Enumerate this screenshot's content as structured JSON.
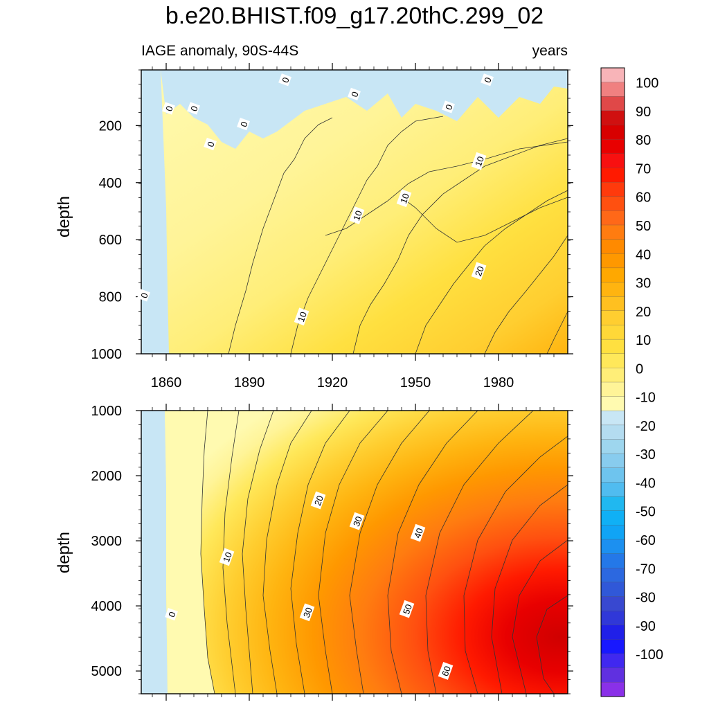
{
  "title": "b.e20.BHIST.f09_g17.20thC.299_02",
  "subtitle_left": "IAGE anomaly, 90S-44S",
  "subtitle_right": "years",
  "chart_data": {
    "type": "heatmap",
    "xlabel": "",
    "x_ticks": [
      "1860",
      "1890",
      "1920",
      "1950",
      "1980"
    ],
    "xlim": [
      1851,
      2005
    ],
    "panels": [
      {
        "name": "upper",
        "ylabel": "depth",
        "ylim": [
          5,
          1000
        ],
        "y_ticks": [
          "200",
          "400",
          "600",
          "800",
          "1000"
        ],
        "contour_labels": [
          {
            "text": "0",
            "x": 1861,
            "y": 140
          },
          {
            "text": "0",
            "x": 1870,
            "y": 140
          },
          {
            "text": "0",
            "x": 1903,
            "y": 40
          },
          {
            "text": "0",
            "x": 1888,
            "y": 195
          },
          {
            "text": "0",
            "x": 1876,
            "y": 265
          },
          {
            "text": "0",
            "x": 1928,
            "y": 90
          },
          {
            "text": "0",
            "x": 1962,
            "y": 135
          },
          {
            "text": "0",
            "x": 1976,
            "y": 40
          },
          {
            "text": "0",
            "x": 1852,
            "y": 795
          },
          {
            "text": "10",
            "x": 1973,
            "y": 325
          },
          {
            "text": "10",
            "x": 1946,
            "y": 455
          },
          {
            "text": "10",
            "x": 1929,
            "y": 515
          },
          {
            "text": "10",
            "x": 1909,
            "y": 870
          },
          {
            "text": "20",
            "x": 1973,
            "y": 710
          }
        ]
      },
      {
        "name": "lower",
        "ylabel": "depth",
        "ylim": [
          1000,
          5350
        ],
        "y_ticks": [
          "1000",
          "2000",
          "3000",
          "4000",
          "5000"
        ],
        "contour_labels": [
          {
            "text": "0",
            "x": 1862,
            "y": 4130
          },
          {
            "text": "10",
            "x": 1882,
            "y": 3250
          },
          {
            "text": "20",
            "x": 1915,
            "y": 2380
          },
          {
            "text": "30",
            "x": 1929,
            "y": 2700
          },
          {
            "text": "30",
            "x": 1911,
            "y": 4100
          },
          {
            "text": "40",
            "x": 1951,
            "y": 2880
          },
          {
            "text": "50",
            "x": 1947,
            "y": 4050
          },
          {
            "text": "60",
            "x": 1961,
            "y": 5000
          }
        ]
      }
    ],
    "colorbar": {
      "levels": [
        -100,
        -90,
        -80,
        -70,
        -60,
        -50,
        -40,
        -30,
        -20,
        -10,
        0,
        10,
        20,
        30,
        40,
        50,
        60,
        70,
        80,
        90,
        100
      ],
      "labels": [
        "100",
        "90",
        "80",
        "70",
        "60",
        "50",
        "40",
        "30",
        "20",
        "10",
        "0",
        "-10",
        "-20",
        "-30",
        "-40",
        "-50",
        "-60",
        "-70",
        "-80",
        "-90",
        "-100"
      ],
      "colors_top_to_bottom": [
        "#f8b4b8",
        "#f08080",
        "#e04848",
        "#d01010",
        "#d80000",
        "#e80000",
        "#f81010",
        "#ff1a00",
        "#ff3a0c",
        "#ff5010",
        "#ff6818",
        "#ff7c10",
        "#ff8a00",
        "#ff9800",
        "#ffa800",
        "#ffb410",
        "#ffc020",
        "#ffce30",
        "#ffd838",
        "#ffe040",
        "#ffe85a",
        "#ffee78",
        "#fff498",
        "#fffab0",
        "#c8e6f5",
        "#b4dcf0",
        "#9ed6ee",
        "#88ccee",
        "#6ec4ee",
        "#50bcf0",
        "#20b8f0",
        "#10b0f5",
        "#10a4f5",
        "#1c90f0",
        "#2478e8",
        "#2c68e0",
        "#3058d8",
        "#3848d0",
        "#3038d8",
        "#2020e8",
        "#1818ff",
        "#4028f0",
        "#6030e0",
        "#8a30e8"
      ]
    }
  }
}
